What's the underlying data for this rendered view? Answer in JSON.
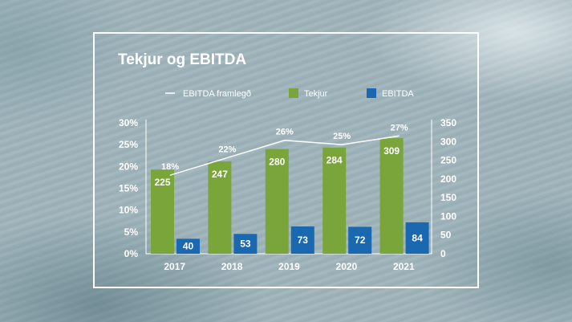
{
  "chart_data": {
    "type": "bar",
    "title": "Tekjur og EBITDA",
    "categories": [
      "2017",
      "2018",
      "2019",
      "2020",
      "2021"
    ],
    "series": [
      {
        "name": "Tekjur",
        "axis": "right",
        "kind": "bar",
        "color": "#7aa53a",
        "values": [
          225,
          247,
          280,
          284,
          309
        ]
      },
      {
        "name": "EBITDA",
        "axis": "right",
        "kind": "bar",
        "color": "#1a68b0",
        "values": [
          40,
          53,
          73,
          72,
          84
        ]
      },
      {
        "name": "EBITDA framlegð",
        "axis": "left",
        "kind": "line",
        "color": "#ffffff",
        "values": [
          18,
          22,
          26,
          25,
          27
        ],
        "labels": [
          "18%",
          "22%",
          "26%",
          "25%",
          "27%"
        ]
      }
    ],
    "y_left": {
      "ticks": [
        "0%",
        "5%",
        "10%",
        "15%",
        "20%",
        "25%",
        "30%"
      ],
      "ylim": [
        0,
        30
      ]
    },
    "y_right": {
      "ticks": [
        "0",
        "50",
        "100",
        "150",
        "200",
        "250",
        "300",
        "350"
      ],
      "ylim": [
        0,
        350
      ]
    },
    "legend": {
      "placement": "top",
      "items": [
        "EBITDA framlegð",
        "Tekjur",
        "EBITDA"
      ]
    },
    "grid": false
  }
}
